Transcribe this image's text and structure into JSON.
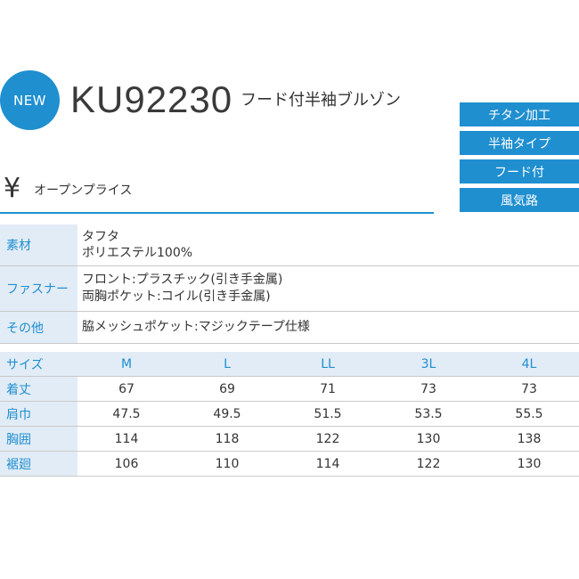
{
  "header": {
    "badge": "NEW",
    "model": "KU92230",
    "name": "フード付半袖ブルゾン"
  },
  "features": [
    "チタン加工",
    "半袖タイプ",
    "フード付",
    "風気路"
  ],
  "price": {
    "symbol": "¥",
    "text": "オープンプライス"
  },
  "specs": {
    "material": {
      "label": "素材",
      "lines": [
        "タフタ",
        "ポリエステル100%"
      ]
    },
    "fastener": {
      "label": "ファスナー",
      "lines": [
        "フロント:プラスチック(引き手金属)",
        "両胸ポケット:コイル(引き手金属)"
      ]
    },
    "other": {
      "label": "その他",
      "lines": [
        "脇メッシュポケット:マジックテープ仕様"
      ]
    }
  },
  "size_table": {
    "header_label": "サイズ",
    "sizes": [
      "M",
      "L",
      "LL",
      "3L",
      "4L"
    ],
    "rows": [
      {
        "label": "着丈",
        "values": [
          "67",
          "69",
          "71",
          "73",
          "73"
        ]
      },
      {
        "label": "肩巾",
        "values": [
          "47.5",
          "49.5",
          "51.5",
          "53.5",
          "55.5"
        ]
      },
      {
        "label": "胸囲",
        "values": [
          "114",
          "118",
          "122",
          "130",
          "138"
        ]
      },
      {
        "label": "裾廻",
        "values": [
          "106",
          "110",
          "114",
          "122",
          "130"
        ]
      }
    ]
  },
  "colors": {
    "accent": "#1f8fd0",
    "label_bg": "#e2ecf6"
  }
}
